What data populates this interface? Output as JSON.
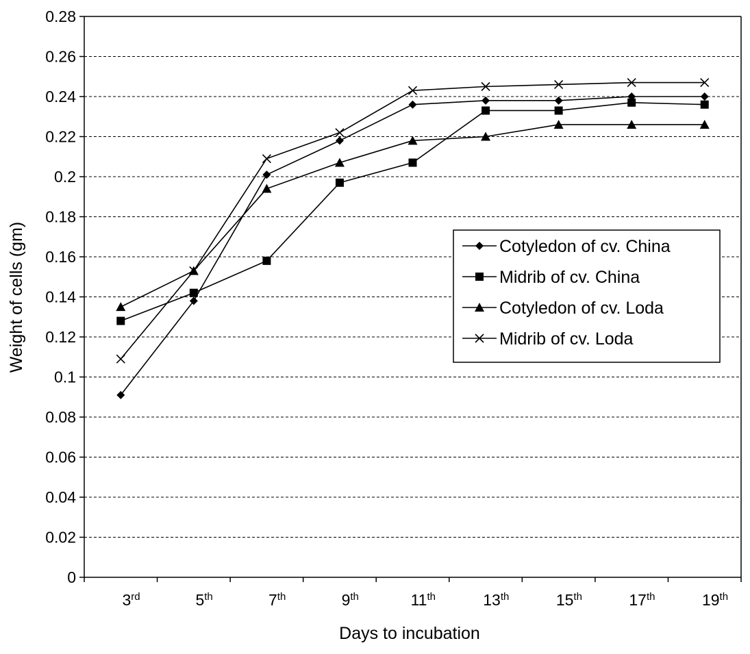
{
  "chart_data": {
    "type": "line",
    "xlabel": "Days to incubation",
    "ylabel": "Weight of cells (gm)",
    "ylim": [
      0,
      0.28
    ],
    "yticks": [
      "0",
      "0.02",
      "0.04",
      "0.06",
      "0.08",
      "0.1",
      "0.12",
      "0.14",
      "0.16",
      "0.18",
      "0.2",
      "0.22",
      "0.24",
      "0.26",
      "0.28"
    ],
    "categories": [
      {
        "num": "3",
        "sup": "rd"
      },
      {
        "num": "5",
        "sup": "th"
      },
      {
        "num": "7",
        "sup": "th"
      },
      {
        "num": "9",
        "sup": "th"
      },
      {
        "num": "11",
        "sup": "th"
      },
      {
        "num": "13",
        "sup": "th"
      },
      {
        "num": "15",
        "sup": "th"
      },
      {
        "num": "17",
        "sup": "th"
      },
      {
        "num": "19",
        "sup": "th"
      }
    ],
    "grid": "horizontal dashed",
    "legend_position": "right",
    "series": [
      {
        "name": "Cotyledon of cv. China",
        "marker": "diamond",
        "values": [
          0.091,
          0.138,
          0.201,
          0.218,
          0.236,
          0.238,
          0.238,
          0.24,
          0.24
        ]
      },
      {
        "name": "Midrib of cv. China",
        "marker": "square",
        "values": [
          0.128,
          0.142,
          0.158,
          0.197,
          0.207,
          0.233,
          0.233,
          0.237,
          0.236
        ]
      },
      {
        "name": "Cotyledon of cv. Loda",
        "marker": "triangle",
        "values": [
          0.135,
          0.153,
          0.194,
          0.207,
          0.218,
          0.22,
          0.226,
          0.226,
          0.226
        ]
      },
      {
        "name": "Midrib of cv. Loda",
        "marker": "x",
        "values": [
          0.109,
          0.153,
          0.209,
          0.222,
          0.243,
          0.245,
          0.246,
          0.247,
          0.247
        ]
      }
    ]
  }
}
